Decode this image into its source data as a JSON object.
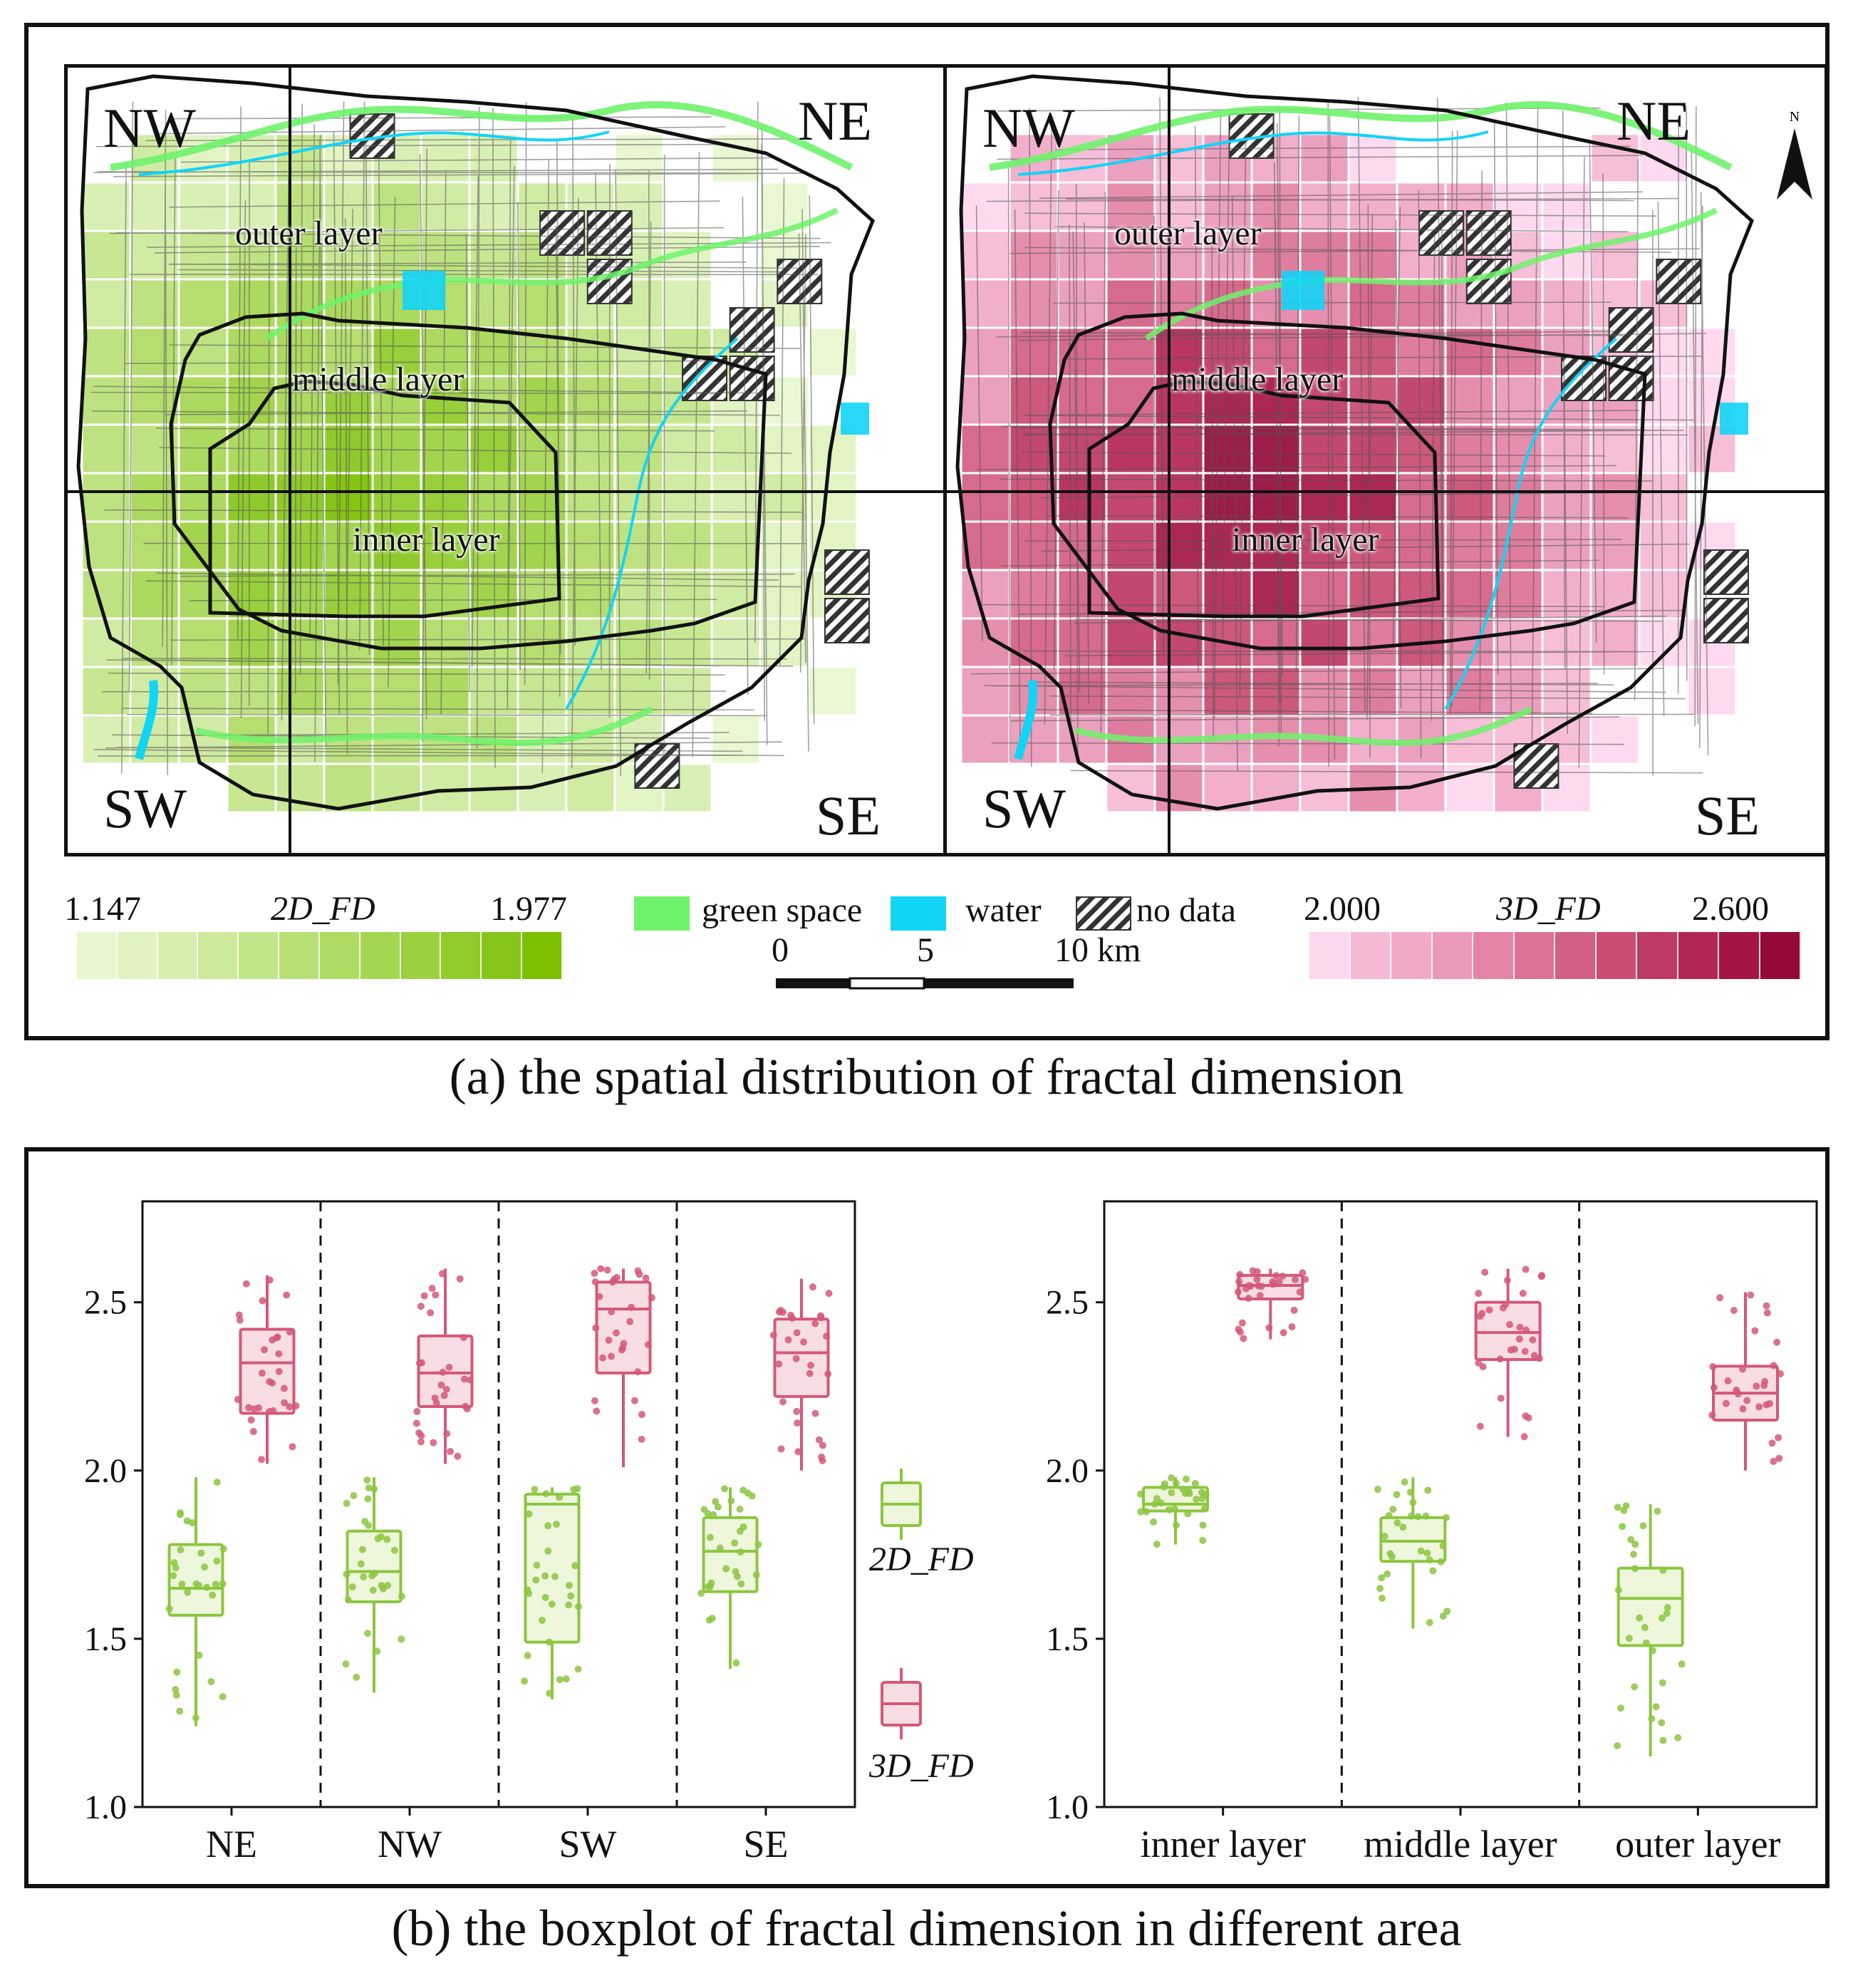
{
  "map_panel": {
    "caption": "(a) the spatial distribution of fractal dimension",
    "left_map": {
      "quadrants": [
        "NW",
        "NE",
        "SW",
        "SE"
      ]
    },
    "right_map": {
      "quadrants": [
        "NW",
        "NE",
        "SW",
        "SE"
      ],
      "north_label": "N"
    },
    "layer_labels": {
      "outer": "outer layer",
      "middle": "middle layer",
      "inner": "inner layer"
    },
    "legend": {
      "fd2_title": "2D_FD",
      "fd2_min": "1.147",
      "fd2_max": "1.977",
      "fd3_title": "3D_FD",
      "fd3_min": "2.000",
      "fd3_max": "2.600",
      "green_label": "green space",
      "water_label": "water",
      "nodata_label": "no data",
      "scale_labels": [
        "0",
        "5",
        "10 km"
      ],
      "colors": {
        "green_ramp": [
          "#e8f7cf",
          "#e0f3c0",
          "#d6efaf",
          "#cdea9c",
          "#c3e58a",
          "#b9e077",
          "#afdb64",
          "#a5d652",
          "#9bd13f",
          "#90cb2b",
          "#86c61b",
          "#7cc000"
        ],
        "pink_ramp": [
          "#fdd7ee",
          "#f6b9d4",
          "#f1a9c8",
          "#eb98ba",
          "#e485a8",
          "#dc7296",
          "#d35f84",
          "#c94c73",
          "#be3963",
          "#b22654",
          "#a41546",
          "#940a3a"
        ],
        "green_space": "#6ff26b",
        "water": "#12d4f5",
        "outline": "#111111"
      }
    }
  },
  "box_panel": {
    "caption": "(b) the boxplot  of fractal dimension in different area",
    "legend": {
      "fd2_label": "2D_FD",
      "fd3_label": "3D_FD"
    }
  },
  "chart_data": [
    {
      "type": "box",
      "title": "",
      "xlabel": "",
      "ylabel": "",
      "categories": [
        "NE",
        "NW",
        "SW",
        "SE"
      ],
      "ylim": [
        1.0,
        2.8
      ],
      "yticks": [
        "1.0",
        "1.5",
        "2.0",
        "2.5"
      ],
      "series": [
        {
          "name": "2D_FD",
          "color": "#8cc63f",
          "boxes": [
            {
              "min": 1.24,
              "q1": 1.57,
              "median": 1.65,
              "q3": 1.78,
              "max": 1.98
            },
            {
              "min": 1.34,
              "q1": 1.61,
              "median": 1.7,
              "q3": 1.82,
              "max": 1.98
            },
            {
              "min": 1.32,
              "q1": 1.49,
              "median": 1.9,
              "q3": 1.93,
              "max": 1.95
            },
            {
              "min": 1.41,
              "q1": 1.64,
              "median": 1.76,
              "q3": 1.86,
              "max": 1.95
            }
          ]
        },
        {
          "name": "3D_FD",
          "color": "#d4587a",
          "boxes": [
            {
              "min": 2.02,
              "q1": 2.17,
              "median": 2.32,
              "q3": 2.42,
              "max": 2.58
            },
            {
              "min": 2.02,
              "q1": 2.19,
              "median": 2.29,
              "q3": 2.4,
              "max": 2.6
            },
            {
              "min": 2.01,
              "q1": 2.29,
              "median": 2.48,
              "q3": 2.56,
              "max": 2.6
            },
            {
              "min": 2.0,
              "q1": 2.22,
              "median": 2.35,
              "q3": 2.45,
              "max": 2.57
            }
          ]
        }
      ]
    },
    {
      "type": "box",
      "title": "",
      "xlabel": "",
      "ylabel": "",
      "categories": [
        "inner layer",
        "middle layer",
        "outer layer"
      ],
      "ylim": [
        1.0,
        2.8
      ],
      "yticks": [
        "1.0",
        "1.5",
        "2.0",
        "2.5"
      ],
      "series": [
        {
          "name": "2D_FD",
          "color": "#8cc63f",
          "boxes": [
            {
              "min": 1.78,
              "q1": 1.88,
              "median": 1.9,
              "q3": 1.95,
              "max": 1.98
            },
            {
              "min": 1.53,
              "q1": 1.73,
              "median": 1.79,
              "q3": 1.86,
              "max": 1.98
            },
            {
              "min": 1.15,
              "q1": 1.48,
              "median": 1.62,
              "q3": 1.71,
              "max": 1.9
            }
          ]
        },
        {
          "name": "3D_FD",
          "color": "#d4587a",
          "boxes": [
            {
              "min": 2.39,
              "q1": 2.51,
              "median": 2.55,
              "q3": 2.58,
              "max": 2.6
            },
            {
              "min": 2.1,
              "q1": 2.33,
              "median": 2.41,
              "q3": 2.5,
              "max": 2.6
            },
            {
              "min": 2.0,
              "q1": 2.15,
              "median": 2.23,
              "q3": 2.31,
              "max": 2.53
            }
          ]
        }
      ]
    }
  ]
}
